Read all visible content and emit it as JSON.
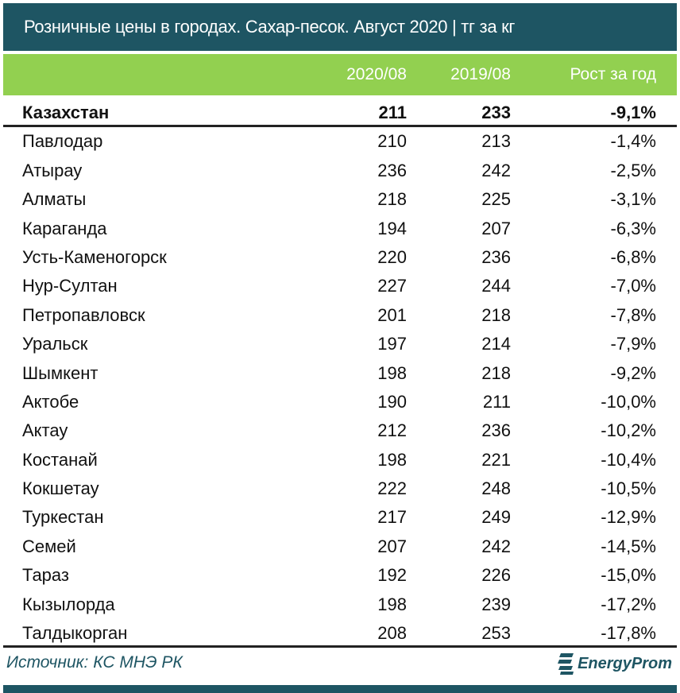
{
  "title": "Розничные цены в городах. Сахар-песок. Август 2020 | тг за кг",
  "colors": {
    "title_bg": "#1e5563",
    "header_bg": "#92d050"
  },
  "chart_data": {
    "type": "table",
    "title": "Розничные цены в городах. Сахар-песок. Август 2020 | тг за кг",
    "columns": [
      "",
      "2020/08",
      "2019/08",
      "Рост за год"
    ],
    "rows": [
      [
        "Казахстан",
        "211",
        "233",
        "-9,1%"
      ],
      [
        "Павлодар",
        "210",
        "213",
        "-1,4%"
      ],
      [
        "Атырау",
        "236",
        "242",
        "-2,5%"
      ],
      [
        "Алматы",
        "218",
        "225",
        "-3,1%"
      ],
      [
        "Караганда",
        "194",
        "207",
        "-6,3%"
      ],
      [
        "Усть-Каменогорск",
        "220",
        "236",
        "-6,8%"
      ],
      [
        "Нур-Султан",
        "227",
        "244",
        "-7,0%"
      ],
      [
        "Петропавловск",
        "201",
        "218",
        "-7,8%"
      ],
      [
        "Уральск",
        "197",
        "214",
        "-7,9%"
      ],
      [
        "Шымкент",
        "198",
        "218",
        "-9,2%"
      ],
      [
        "Актобе",
        "190",
        "211",
        "-10,0%"
      ],
      [
        "Актау",
        "212",
        "236",
        "-10,2%"
      ],
      [
        "Костанай",
        "198",
        "221",
        "-10,4%"
      ],
      [
        "Кокшетау",
        "222",
        "248",
        "-10,5%"
      ],
      [
        "Туркестан",
        "217",
        "249",
        "-12,9%"
      ],
      [
        "Семей",
        "207",
        "242",
        "-14,5%"
      ],
      [
        "Тараз",
        "192",
        "226",
        "-15,0%"
      ],
      [
        "Кызылорда",
        "198",
        "239",
        "-17,2%"
      ],
      [
        "Талдыкорган",
        "208",
        "253",
        "-17,8%"
      ]
    ]
  },
  "footer": {
    "source": "Источник: КС МНЭ РК",
    "logo": "EnergyProm"
  }
}
